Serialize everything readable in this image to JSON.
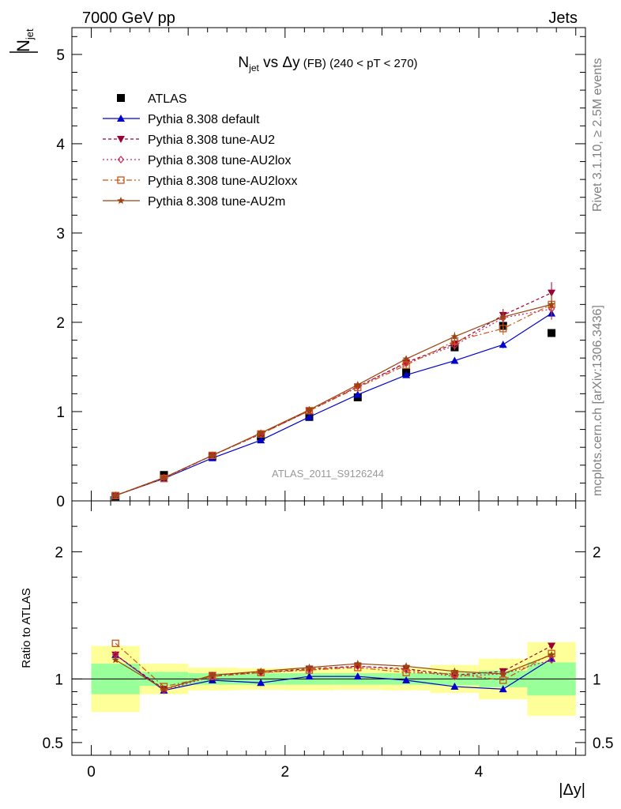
{
  "header": {
    "left": "7000 GeV pp",
    "right": "Jets"
  },
  "side_labels": {
    "rivet": "Rivet 3.1.10, ≥ 2.5M events",
    "mcplots": "mcplots.cern.ch [arXiv:1306.3436]"
  },
  "watermark": "ATLAS_2011_S9126244",
  "chart_data": [
    {
      "type": "line",
      "title_main": "N",
      "title_sub": "jet",
      "title_rest": " vs Δy",
      "title_fb": " (FB)",
      "title_range": " (240 < pT < 270)",
      "ylabel_main": "N",
      "ylabel_sub": "jet",
      "xlabel": "|Δy|",
      "xlim": [
        -0.2,
        5.1
      ],
      "ylim": [
        0,
        5.3
      ],
      "yticks": [
        "0",
        "1",
        "2",
        "3",
        "4",
        "5"
      ],
      "grid": false,
      "legend_position": "top-left",
      "x": [
        0.25,
        0.75,
        1.25,
        1.75,
        2.25,
        2.75,
        3.25,
        3.75,
        4.25,
        4.75
      ],
      "series": [
        {
          "name": "ATLAS",
          "color": "#000000",
          "marker": "square",
          "values": [
            0.05,
            0.29,
            0.5,
            0.72,
            0.94,
            1.16,
            1.44,
            1.72,
            1.96,
            1.88
          ]
        },
        {
          "name": "Pythia 8.308 default",
          "color": "#0000cc",
          "marker": "triangle-up",
          "dash": "solid",
          "values": [
            0.06,
            0.25,
            0.48,
            0.68,
            0.94,
            1.19,
            1.41,
            1.57,
            1.75,
            2.1
          ],
          "errors": [
            0.01,
            0.01,
            0.01,
            0.01,
            0.01,
            0.02,
            0.02,
            0.03,
            0.04,
            0.07
          ]
        },
        {
          "name": "Pythia 8.308 tune-AU2",
          "color": "#990033",
          "marker": "triangle-down",
          "dash": "4,3",
          "values": [
            0.06,
            0.26,
            0.51,
            0.75,
            1.01,
            1.28,
            1.55,
            1.76,
            2.08,
            2.33
          ],
          "errors": [
            0.01,
            0.01,
            0.01,
            0.01,
            0.02,
            0.02,
            0.03,
            0.05,
            0.07,
            0.12
          ]
        },
        {
          "name": "Pythia 8.308 tune-AU2lox",
          "color": "#cc2255",
          "marker": "diamond-open",
          "dash": "2,3",
          "values": [
            0.06,
            0.26,
            0.51,
            0.75,
            1.01,
            1.28,
            1.54,
            1.74,
            2.05,
            2.15
          ],
          "errors": [
            0.01,
            0.01,
            0.01,
            0.01,
            0.02,
            0.02,
            0.03,
            0.05,
            0.07,
            0.12
          ]
        },
        {
          "name": "Pythia 8.308 tune-AU2loxx",
          "color": "#cc5511",
          "marker": "square-open",
          "dash": "7,3,2,3",
          "values": [
            0.06,
            0.25,
            0.51,
            0.75,
            1.01,
            1.27,
            1.52,
            1.79,
            1.93,
            2.2
          ],
          "errors": [
            0.01,
            0.01,
            0.01,
            0.01,
            0.02,
            0.02,
            0.03,
            0.05,
            0.07,
            0.12
          ]
        },
        {
          "name": "Pythia 8.308 tune-AU2m",
          "color": "#994411",
          "marker": "star",
          "dash": "solid",
          "values": [
            0.06,
            0.26,
            0.51,
            0.76,
            1.02,
            1.3,
            1.59,
            1.84,
            2.06,
            2.2
          ],
          "errors": [
            0.01,
            0.01,
            0.01,
            0.01,
            0.02,
            0.02,
            0.03,
            0.05,
            0.07,
            0.12
          ]
        }
      ]
    },
    {
      "type": "line",
      "ylabel": "Ratio to ATLAS",
      "xlabel": "|Δy|",
      "xlim": [
        -0.2,
        5.1
      ],
      "ylim": [
        0.4,
        2.4
      ],
      "yticks": [
        "0.5",
        "1",
        "2"
      ],
      "xticks": [
        "0",
        "2",
        "4"
      ],
      "reference": 1,
      "bins": [
        [
          0,
          0.5
        ],
        [
          0.5,
          1
        ],
        [
          1,
          1.5
        ],
        [
          1.5,
          2
        ],
        [
          2,
          2.5
        ],
        [
          2.5,
          3
        ],
        [
          3,
          3.5
        ],
        [
          3.5,
          4
        ],
        [
          4,
          4.5
        ],
        [
          4.5,
          5
        ]
      ],
      "band_green": [
        0.12,
        0.055,
        0.045,
        0.045,
        0.045,
        0.045,
        0.045,
        0.05,
        0.065,
        0.13
      ],
      "band_yellow": [
        0.26,
        0.12,
        0.09,
        0.085,
        0.09,
        0.085,
        0.09,
        0.11,
        0.16,
        0.29
      ],
      "x": [
        0.25,
        0.75,
        1.25,
        1.75,
        2.25,
        2.75,
        3.25,
        3.75,
        4.25,
        4.75
      ],
      "series": [
        {
          "name": "Pythia 8.308 default",
          "color": "#0000cc",
          "marker": "triangle-up",
          "dash": "solid",
          "values": [
            1.19,
            0.91,
            0.99,
            0.97,
            1.02,
            1.02,
            0.99,
            0.94,
            0.92,
            1.16
          ]
        },
        {
          "name": "Pythia 8.308 tune-AU2",
          "color": "#990033",
          "marker": "triangle-down",
          "dash": "4,3",
          "values": [
            1.19,
            0.92,
            1.03,
            1.05,
            1.08,
            1.1,
            1.08,
            1.03,
            1.06,
            1.26
          ]
        },
        {
          "name": "Pythia 8.308 tune-AU2lox",
          "color": "#cc2255",
          "marker": "diamond-open",
          "dash": "2,3",
          "values": [
            1.19,
            0.91,
            1.02,
            1.05,
            1.07,
            1.1,
            1.07,
            1.02,
            1.04,
            1.15
          ]
        },
        {
          "name": "Pythia 8.308 tune-AU2loxx",
          "color": "#cc5511",
          "marker": "square-open",
          "dash": "7,3,2,3",
          "values": [
            1.28,
            0.94,
            1.02,
            1.05,
            1.07,
            1.09,
            1.05,
            1.04,
            0.99,
            1.2
          ]
        },
        {
          "name": "Pythia 8.308 tune-AU2m",
          "color": "#994411",
          "marker": "star",
          "dash": "solid",
          "values": [
            1.15,
            0.92,
            1.03,
            1.06,
            1.09,
            1.12,
            1.1,
            1.06,
            1.04,
            1.19
          ]
        }
      ]
    }
  ]
}
